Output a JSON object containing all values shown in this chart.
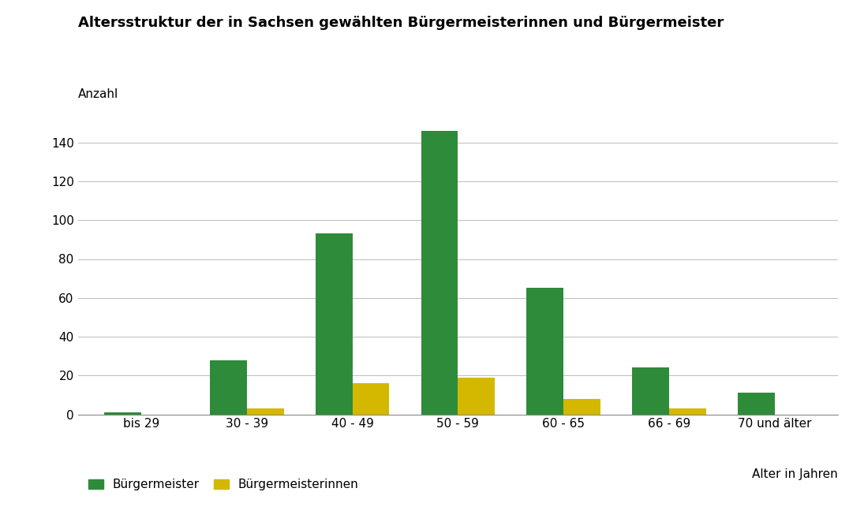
{
  "title": "Altersstruktur der in Sachsen gewählten Bürgermeisterinnen und Bürgermeister",
  "ylabel": "Anzahl",
  "xlabel_right": "Alter in Jahren",
  "categories": [
    "bis 29",
    "30 - 39",
    "40 - 49",
    "50 - 59",
    "60 - 65",
    "66 - 69",
    "70 und älter"
  ],
  "buergermeister": [
    1,
    28,
    93,
    146,
    65,
    24,
    11
  ],
  "buergermeisterinnen": [
    0,
    3,
    16,
    19,
    8,
    3,
    0
  ],
  "color_bm": "#2e8b3a",
  "color_bmin": "#d4b800",
  "background_color": "#ffffff",
  "ylim": [
    0,
    160
  ],
  "yticks": [
    0,
    20,
    40,
    60,
    80,
    100,
    120,
    140
  ],
  "bar_width": 0.35,
  "legend_bm": "Bürgermeister",
  "legend_bmin": "Bürgermeisterinnen",
  "title_fontsize": 13,
  "label_fontsize": 11,
  "tick_fontsize": 11
}
